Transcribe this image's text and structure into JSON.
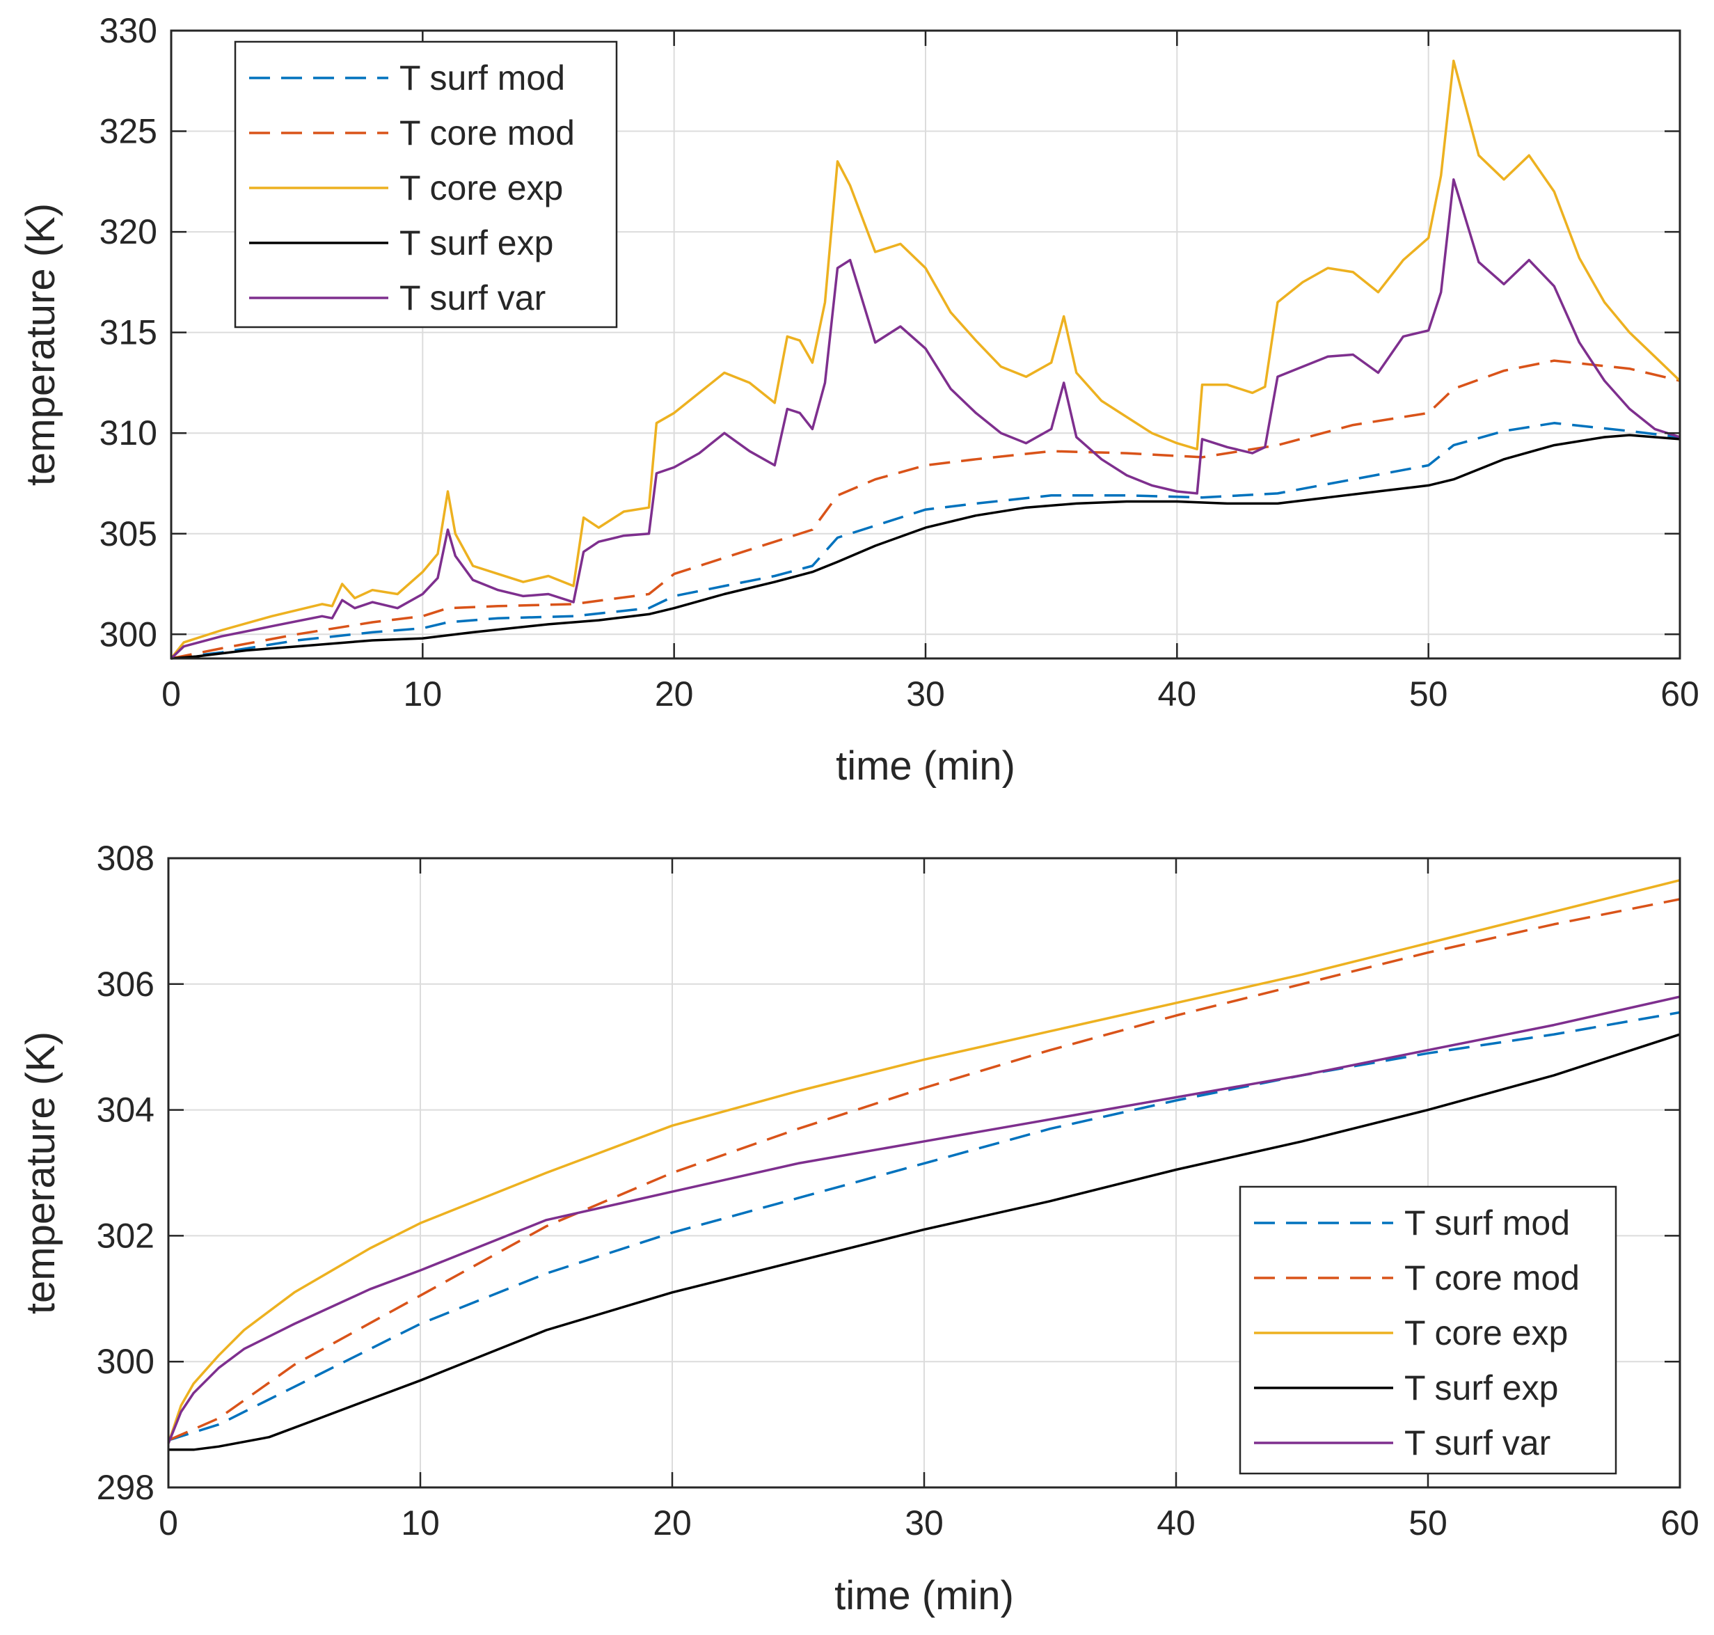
{
  "chart_data": [
    {
      "type": "line",
      "title": "",
      "xlabel": "time (min)",
      "ylabel": "temperature (K)",
      "xlim": [
        0,
        60
      ],
      "ylim": [
        298.8,
        330
      ],
      "xticks": [
        0,
        10,
        20,
        30,
        40,
        50,
        60
      ],
      "yticks": [
        300,
        305,
        310,
        315,
        320,
        325,
        330
      ],
      "grid": true,
      "legend_position": "top-left",
      "series": [
        {
          "name": "T surf mod",
          "color": "#0072BD",
          "dash": "dashed",
          "x": [
            0,
            2,
            5,
            8,
            10,
            11,
            13,
            16,
            19,
            20,
            22,
            24,
            25.5,
            26.5,
            28,
            30,
            32,
            35,
            38,
            41,
            44,
            47,
            50,
            51,
            53,
            55,
            58,
            60
          ],
          "y": [
            298.8,
            299.1,
            299.7,
            300.1,
            300.3,
            300.6,
            300.8,
            300.9,
            301.3,
            301.9,
            302.4,
            302.9,
            303.4,
            304.8,
            305.4,
            306.2,
            306.5,
            306.9,
            306.9,
            306.8,
            307.0,
            307.7,
            308.4,
            309.4,
            310.1,
            310.5,
            310.1,
            309.8
          ]
        },
        {
          "name": "T core mod",
          "color": "#D95319",
          "dash": "dashed",
          "x": [
            0,
            2,
            5,
            8,
            10,
            11,
            13,
            16,
            19,
            20,
            22,
            24,
            25.5,
            26.5,
            28,
            30,
            32,
            35,
            38,
            41,
            44,
            47,
            50,
            51,
            53,
            55,
            58,
            60
          ],
          "y": [
            298.8,
            299.3,
            300.0,
            300.6,
            300.9,
            301.3,
            301.4,
            301.5,
            302.0,
            303.0,
            303.8,
            304.6,
            305.2,
            306.9,
            307.7,
            308.4,
            308.7,
            309.1,
            309.0,
            308.8,
            309.4,
            310.4,
            311.0,
            312.2,
            313.1,
            313.6,
            313.2,
            312.6
          ]
        },
        {
          "name": "T core exp",
          "color": "#EDB120",
          "dash": "solid",
          "x": [
            0,
            0.5,
            2,
            4,
            6,
            6.4,
            6.8,
            7.3,
            8,
            9,
            10,
            10.6,
            11,
            11.3,
            12,
            13,
            14,
            15,
            16,
            16.4,
            17,
            18,
            19,
            19.3,
            20,
            21,
            22,
            23,
            24,
            24.5,
            25,
            25.5,
            26,
            26.5,
            27,
            28,
            29,
            30,
            31,
            32,
            33,
            34,
            35,
            35.5,
            36,
            37,
            38,
            39,
            40,
            40.8,
            41,
            42,
            43,
            43.5,
            44,
            45,
            46,
            47,
            48,
            49,
            50,
            50.5,
            51,
            52,
            53,
            54,
            55,
            56,
            57,
            58,
            59,
            60
          ],
          "y": [
            298.8,
            299.6,
            300.2,
            300.9,
            301.5,
            301.4,
            302.5,
            301.8,
            302.2,
            302.0,
            303.1,
            304.0,
            307.1,
            305.0,
            303.4,
            303.0,
            302.6,
            302.9,
            302.4,
            305.8,
            305.3,
            306.1,
            306.3,
            310.5,
            311.0,
            312.0,
            313.0,
            312.5,
            311.5,
            314.8,
            314.6,
            313.5,
            316.5,
            323.5,
            322.3,
            319.0,
            319.4,
            318.2,
            316.0,
            314.6,
            313.3,
            312.8,
            313.5,
            315.8,
            313.0,
            311.6,
            310.8,
            310.0,
            309.5,
            309.2,
            312.4,
            312.4,
            312.0,
            312.3,
            316.5,
            317.5,
            318.2,
            318.0,
            317.0,
            318.6,
            319.7,
            322.8,
            328.5,
            323.8,
            322.6,
            323.8,
            322.0,
            318.7,
            316.5,
            315.0,
            313.8,
            312.6
          ]
        },
        {
          "name": "T surf exp",
          "color": "#000000",
          "dash": "solid",
          "x": [
            0,
            1,
            3,
            5,
            8,
            10,
            12,
            15,
            17,
            19,
            20,
            22,
            24,
            25.5,
            26.5,
            28,
            30,
            32,
            34,
            36,
            38,
            40,
            42,
            44,
            46,
            48,
            50,
            51,
            53,
            55,
            57,
            58,
            60
          ],
          "y": [
            298.8,
            298.9,
            299.2,
            299.4,
            299.7,
            299.8,
            300.1,
            300.5,
            300.7,
            301.0,
            301.3,
            302.0,
            302.6,
            303.1,
            303.6,
            304.4,
            305.3,
            305.9,
            306.3,
            306.5,
            306.6,
            306.6,
            306.5,
            306.5,
            306.8,
            307.1,
            307.4,
            307.7,
            308.7,
            309.4,
            309.8,
            309.9,
            309.7
          ]
        },
        {
          "name": "T surf var",
          "color": "#7E2F8E",
          "dash": "solid",
          "x": [
            0,
            0.5,
            2,
            4,
            6,
            6.4,
            6.8,
            7.3,
            8,
            9,
            10,
            10.6,
            11,
            11.3,
            12,
            13,
            14,
            15,
            16,
            16.4,
            17,
            18,
            19,
            19.3,
            20,
            21,
            22,
            23,
            24,
            24.5,
            25,
            25.5,
            26,
            26.5,
            27,
            28,
            29,
            30,
            31,
            32,
            33,
            34,
            35,
            35.5,
            36,
            37,
            38,
            39,
            40,
            40.8,
            41,
            42,
            43,
            43.5,
            44,
            45,
            46,
            47,
            48,
            49,
            50,
            50.5,
            51,
            52,
            53,
            54,
            55,
            56,
            57,
            58,
            59,
            60
          ],
          "y": [
            298.8,
            299.4,
            299.9,
            300.4,
            300.9,
            300.8,
            301.7,
            301.3,
            301.6,
            301.3,
            302.0,
            302.8,
            305.2,
            303.9,
            302.7,
            302.2,
            301.9,
            302.0,
            301.6,
            304.1,
            304.6,
            304.9,
            305.0,
            308.0,
            308.3,
            309.0,
            310.0,
            309.1,
            308.4,
            311.2,
            311.0,
            310.2,
            312.5,
            318.2,
            318.6,
            314.5,
            315.3,
            314.2,
            312.2,
            311.0,
            310.0,
            309.5,
            310.2,
            312.5,
            309.8,
            308.7,
            307.9,
            307.4,
            307.1,
            307.0,
            309.7,
            309.3,
            309.0,
            309.3,
            312.8,
            313.3,
            313.8,
            313.9,
            313.0,
            314.8,
            315.1,
            317.0,
            322.6,
            318.5,
            317.4,
            318.6,
            317.3,
            314.5,
            312.6,
            311.2,
            310.2,
            309.8
          ]
        }
      ]
    },
    {
      "type": "line",
      "title": "",
      "xlabel": "time (min)",
      "ylabel": "temperature (K)",
      "xlim": [
        0,
        60
      ],
      "ylim": [
        298,
        308
      ],
      "xticks": [
        0,
        10,
        20,
        30,
        40,
        50,
        60
      ],
      "yticks": [
        298,
        300,
        302,
        304,
        306,
        308
      ],
      "grid": true,
      "legend_position": "bottom-right",
      "series": [
        {
          "name": "T surf mod",
          "color": "#0072BD",
          "dash": "dashed",
          "x": [
            0,
            2,
            5,
            10,
            15,
            20,
            25,
            30,
            35,
            40,
            45,
            50,
            55,
            60
          ],
          "y": [
            298.75,
            299.0,
            299.6,
            300.6,
            301.4,
            302.05,
            302.6,
            303.15,
            303.7,
            304.15,
            304.55,
            304.9,
            305.2,
            305.55
          ]
        },
        {
          "name": "T core mod",
          "color": "#D95319",
          "dash": "dashed",
          "x": [
            0,
            2,
            5,
            10,
            15,
            20,
            25,
            30,
            35,
            40,
            45,
            50,
            55,
            60
          ],
          "y": [
            298.75,
            299.1,
            299.95,
            301.05,
            302.15,
            303.0,
            303.7,
            304.35,
            304.95,
            305.5,
            306.0,
            306.5,
            306.95,
            307.35
          ]
        },
        {
          "name": "T core exp",
          "color": "#EDB120",
          "dash": "solid",
          "x": [
            0,
            0.5,
            1,
            2,
            3,
            5,
            8,
            10,
            15,
            20,
            25,
            30,
            35,
            40,
            45,
            50,
            55,
            60
          ],
          "y": [
            298.7,
            299.3,
            299.65,
            300.1,
            300.5,
            301.1,
            301.8,
            302.2,
            303.0,
            303.75,
            304.3,
            304.8,
            305.25,
            305.7,
            306.15,
            306.65,
            307.15,
            307.65
          ]
        },
        {
          "name": "T surf exp",
          "color": "#000000",
          "dash": "solid",
          "x": [
            0,
            1,
            2,
            4,
            6,
            8,
            10,
            15,
            20,
            25,
            30,
            35,
            40,
            45,
            50,
            55,
            60
          ],
          "y": [
            298.6,
            298.6,
            298.65,
            298.8,
            299.1,
            299.4,
            299.7,
            300.5,
            301.1,
            301.6,
            302.1,
            302.55,
            303.05,
            303.5,
            304.0,
            304.55,
            305.2
          ]
        },
        {
          "name": "T surf var",
          "color": "#7E2F8E",
          "dash": "solid",
          "x": [
            0,
            0.5,
            1,
            2,
            3,
            5,
            8,
            10,
            15,
            20,
            25,
            30,
            35,
            40,
            45,
            50,
            55,
            60
          ],
          "y": [
            298.7,
            299.2,
            299.5,
            299.9,
            300.2,
            300.6,
            301.15,
            301.45,
            302.25,
            302.7,
            303.15,
            303.5,
            303.85,
            304.2,
            304.55,
            304.95,
            305.35,
            305.8
          ]
        }
      ]
    }
  ]
}
